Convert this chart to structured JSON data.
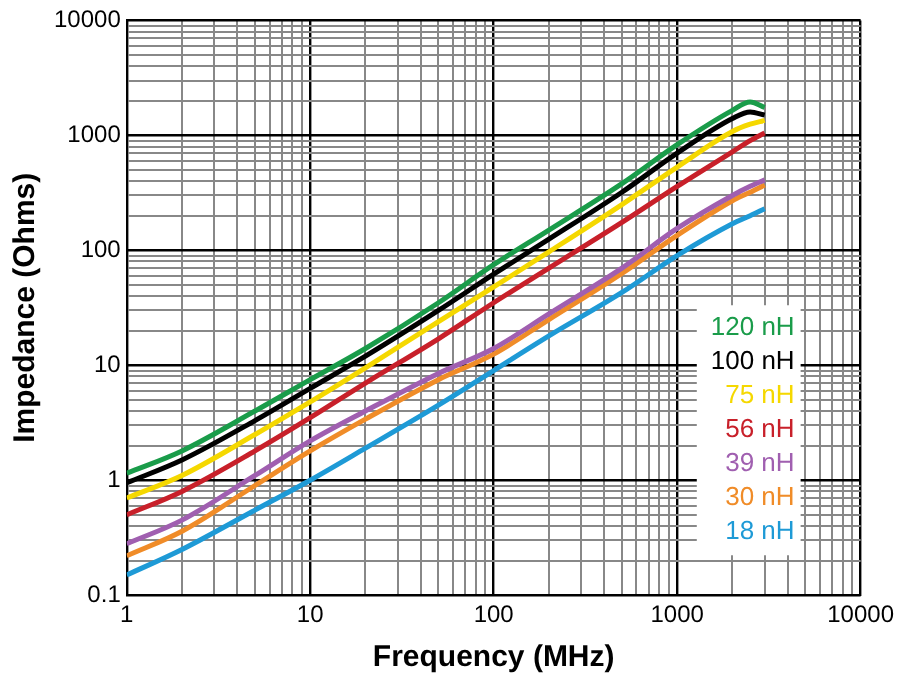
{
  "chart_data": {
    "type": "line",
    "xlabel": "Frequency (MHz)",
    "ylabel": "Impedance (Ohms)",
    "log": "xy",
    "grid": true,
    "legend": "bottom right",
    "marker": "none",
    "line_style": "solid",
    "x": [
      1,
      2,
      5,
      10,
      20,
      50,
      100,
      200,
      500,
      1000,
      2000,
      2500,
      3000
    ],
    "xlim": [
      1,
      10000
    ],
    "xticks": [
      1,
      10,
      100,
      1000,
      10000
    ],
    "ylim": [
      0.1,
      10000
    ],
    "yticks": [
      0.1,
      1,
      10,
      100,
      1000,
      10000
    ],
    "series": [
      {
        "name": "120 nH",
        "color": "#1a9c4a",
        "values": [
          1.15,
          1.8,
          4,
          7.5,
          14,
          35,
          75,
          150,
          380,
          830,
          1650,
          1950,
          1750
        ]
      },
      {
        "name": "100 nH",
        "color": "#000000",
        "values": [
          0.95,
          1.5,
          3.3,
          6.3,
          12,
          30,
          62,
          125,
          320,
          700,
          1400,
          1600,
          1500
        ]
      },
      {
        "name": "75 nH",
        "color": "#f5d800",
        "values": [
          0.7,
          1.1,
          2.5,
          4.8,
          9.5,
          24,
          48,
          97,
          250,
          530,
          1080,
          1250,
          1350
        ]
      },
      {
        "name": "56 nH",
        "color": "#c8202a",
        "values": [
          0.5,
          0.8,
          1.8,
          3.5,
          7,
          17,
          35,
          70,
          175,
          360,
          720,
          900,
          1050
        ]
      },
      {
        "name": "39 nH",
        "color": "#a05fb0",
        "values": [
          0.28,
          0.45,
          1.1,
          2.2,
          4,
          8.5,
          14,
          28,
          70,
          155,
          300,
          360,
          410
        ]
      },
      {
        "name": "30 nH",
        "color": "#f08c28",
        "values": [
          0.22,
          0.36,
          0.9,
          1.8,
          3.4,
          7.5,
          12.5,
          25,
          63,
          135,
          270,
          320,
          370
        ]
      },
      {
        "name": "18 nH",
        "color": "#1e9ad6",
        "values": [
          0.15,
          0.25,
          0.55,
          1.0,
          1.9,
          4.5,
          9,
          18,
          43,
          90,
          170,
          200,
          230
        ]
      }
    ]
  }
}
